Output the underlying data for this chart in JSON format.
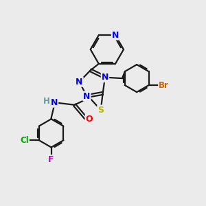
{
  "bg_color": "#ebebeb",
  "bond_color": "#1a1a1a",
  "bond_width": 1.6,
  "atom_colors": {
    "N": "#0000ee",
    "S": "#b8b800",
    "O": "#ff0000",
    "Br": "#cc6600",
    "Cl": "#00aa00",
    "F": "#cc00cc",
    "H": "#6a9a9a",
    "C": "#1a1a1a"
  },
  "fig_width": 3.0,
  "fig_height": 3.0,
  "dpi": 100
}
